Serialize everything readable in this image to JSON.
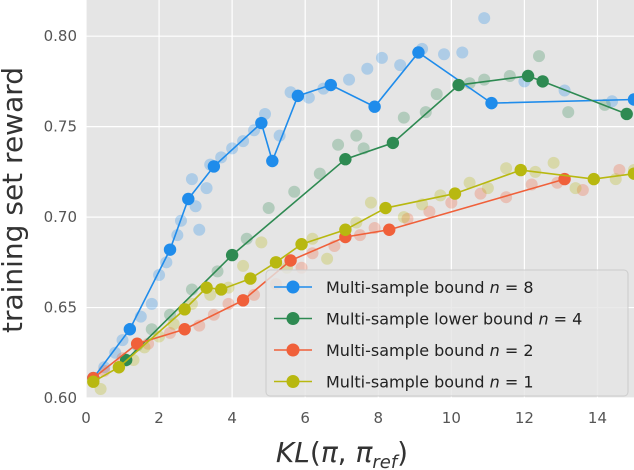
{
  "chart_data": {
    "type": "line",
    "title": "",
    "xlabel": "KL(π, π_ref)",
    "ylabel": "training set reward",
    "xlim": [
      0,
      15
    ],
    "ylim": [
      0.6,
      0.82
    ],
    "grid": true,
    "legend_position": "lower-right",
    "x_ticks": [
      0,
      2,
      4,
      6,
      8,
      10,
      12,
      14
    ],
    "y_ticks": [
      0.6,
      0.65,
      0.7,
      0.75,
      0.8
    ],
    "x_tick_labels": [
      "0",
      "2",
      "4",
      "6",
      "8",
      "10",
      "12",
      "14"
    ],
    "y_tick_labels": [
      "0.60",
      "0.65",
      "0.70",
      "0.75",
      "0.80"
    ],
    "series": [
      {
        "name": "Multi-sample bound n = 8",
        "legend_main": "Multi-sample bound ",
        "legend_n": "n",
        "legend_value": " = 8",
        "color": "#1f8ceb",
        "x": [
          0.2,
          1.2,
          2.3,
          2.8,
          3.5,
          4.8,
          5.1,
          5.8,
          6.7,
          7.9,
          9.1,
          11.1,
          15.0
        ],
        "y": [
          0.611,
          0.638,
          0.682,
          0.71,
          0.728,
          0.752,
          0.731,
          0.767,
          0.773,
          0.761,
          0.791,
          0.763,
          0.765
        ],
        "scatter_x": [
          0.5,
          0.8,
          1.0,
          1.5,
          1.8,
          2.0,
          2.2,
          2.5,
          2.6,
          2.9,
          3.0,
          3.1,
          3.3,
          3.4,
          3.7,
          4.0,
          4.3,
          4.6,
          4.9,
          5.3,
          5.6,
          6.1,
          6.5,
          7.2,
          7.7,
          8.1,
          8.6,
          9.2,
          9.8,
          10.3,
          10.9,
          12.0,
          13.1,
          14.4
        ],
        "scatter_y": [
          0.617,
          0.625,
          0.632,
          0.645,
          0.652,
          0.668,
          0.675,
          0.69,
          0.698,
          0.721,
          0.706,
          0.693,
          0.716,
          0.729,
          0.733,
          0.738,
          0.742,
          0.748,
          0.757,
          0.745,
          0.769,
          0.766,
          0.771,
          0.776,
          0.782,
          0.788,
          0.784,
          0.793,
          0.79,
          0.791,
          0.81,
          0.775,
          0.77,
          0.764
        ]
      },
      {
        "name": "Multi-sample lower bound n = 4",
        "legend_main": "Multi-sample lower bound ",
        "legend_n": "n",
        "legend_value": " = 4",
        "color": "#2e8a52",
        "x": [
          1.1,
          4.0,
          7.1,
          8.4,
          10.2,
          12.1,
          12.5,
          14.8
        ],
        "y": [
          0.621,
          0.679,
          0.732,
          0.741,
          0.773,
          0.778,
          0.775,
          0.757
        ],
        "scatter_x": [
          1.4,
          1.8,
          2.3,
          2.9,
          3.6,
          4.4,
          5.0,
          5.7,
          6.4,
          6.9,
          7.4,
          7.6,
          8.7,
          9.3,
          9.6,
          10.5,
          10.9,
          11.6,
          12.4,
          13.2,
          14.2
        ],
        "scatter_y": [
          0.629,
          0.638,
          0.646,
          0.66,
          0.67,
          0.688,
          0.705,
          0.714,
          0.724,
          0.74,
          0.745,
          0.738,
          0.755,
          0.758,
          0.768,
          0.774,
          0.776,
          0.778,
          0.789,
          0.758,
          0.762
        ]
      },
      {
        "name": "Multi-sample bound n = 2",
        "legend_main": "Multi-sample bound ",
        "legend_n": "n",
        "legend_value": " = 2",
        "color": "#f0603a",
        "x": [
          0.2,
          1.4,
          2.7,
          4.3,
          5.6,
          7.1,
          8.3,
          13.1
        ],
        "y": [
          0.611,
          0.63,
          0.638,
          0.654,
          0.676,
          0.689,
          0.693,
          0.721
        ],
        "scatter_x": [
          0.5,
          1.0,
          1.7,
          2.3,
          3.1,
          3.5,
          3.9,
          4.6,
          5.2,
          5.9,
          6.2,
          6.8,
          7.5,
          7.9,
          8.8,
          9.4,
          10.0,
          10.8,
          11.5,
          12.2,
          12.9,
          13.6,
          14.6
        ],
        "scatter_y": [
          0.615,
          0.622,
          0.63,
          0.636,
          0.64,
          0.646,
          0.652,
          0.657,
          0.663,
          0.672,
          0.68,
          0.684,
          0.69,
          0.694,
          0.699,
          0.703,
          0.708,
          0.713,
          0.711,
          0.718,
          0.719,
          0.715,
          0.726
        ]
      },
      {
        "name": "Multi-sample bound n = 1",
        "legend_main": "Multi-sample bound ",
        "legend_n": "n",
        "legend_value": " = 1",
        "color": "#b8b810",
        "x": [
          0.2,
          0.9,
          2.7,
          3.3,
          3.7,
          4.5,
          5.2,
          5.9,
          7.1,
          8.2,
          10.1,
          11.9,
          13.9,
          15.0
        ],
        "y": [
          0.609,
          0.617,
          0.649,
          0.661,
          0.66,
          0.666,
          0.675,
          0.685,
          0.693,
          0.705,
          0.713,
          0.726,
          0.721,
          0.724
        ],
        "scatter_x": [
          0.4,
          1.3,
          1.6,
          2.0,
          2.4,
          2.9,
          3.4,
          3.9,
          4.3,
          4.8,
          5.5,
          6.2,
          6.6,
          7.4,
          7.8,
          8.7,
          9.2,
          9.7,
          10.5,
          11.0,
          11.5,
          12.3,
          12.8,
          13.4,
          14.5,
          15.0
        ],
        "scatter_y": [
          0.605,
          0.621,
          0.628,
          0.634,
          0.641,
          0.652,
          0.657,
          0.661,
          0.673,
          0.686,
          0.672,
          0.688,
          0.677,
          0.697,
          0.708,
          0.7,
          0.707,
          0.712,
          0.719,
          0.716,
          0.727,
          0.725,
          0.73,
          0.716,
          0.721,
          0.726
        ]
      }
    ]
  }
}
